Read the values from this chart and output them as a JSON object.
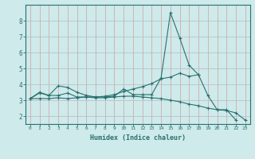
{
  "xlabel": "Humidex (Indice chaleur)",
  "background_color": "#ceeaea",
  "grid_color": "#b8b8c8",
  "grid_color_red": "#d0a0a0",
  "line_color": "#2a7070",
  "xlim": [
    -0.5,
    23.5
  ],
  "ylim": [
    1.5,
    9.0
  ],
  "yticks": [
    2,
    3,
    4,
    5,
    6,
    7,
    8
  ],
  "xticks": [
    0,
    1,
    2,
    3,
    4,
    5,
    6,
    7,
    8,
    9,
    10,
    11,
    12,
    13,
    14,
    15,
    16,
    17,
    18,
    19,
    20,
    21,
    22,
    23
  ],
  "line1_x": [
    0,
    1,
    2,
    3,
    4,
    5,
    6,
    7,
    8,
    9,
    10,
    11,
    12,
    13,
    14,
    15,
    16,
    17,
    18,
    19,
    20,
    21,
    22
  ],
  "line1_y": [
    3.1,
    3.5,
    3.3,
    3.9,
    3.8,
    3.5,
    3.3,
    3.2,
    3.2,
    3.25,
    3.7,
    3.35,
    3.35,
    3.35,
    4.4,
    8.5,
    6.9,
    5.2,
    4.6,
    3.3,
    2.4,
    2.4,
    1.75
  ],
  "line2_x": [
    0,
    1,
    2,
    3,
    4,
    5,
    6,
    7,
    8,
    9,
    10,
    11,
    12,
    13,
    14,
    15,
    16,
    17,
    18
  ],
  "line2_y": [
    3.1,
    3.1,
    3.1,
    3.15,
    3.1,
    3.15,
    3.2,
    3.2,
    3.25,
    3.35,
    3.55,
    3.7,
    3.85,
    4.05,
    4.35,
    4.45,
    4.7,
    4.5,
    4.6
  ],
  "line3_x": [
    0,
    1,
    2,
    3,
    4,
    5,
    6,
    7,
    8,
    9,
    10,
    11,
    12,
    13,
    14,
    15,
    16,
    17,
    18,
    19,
    20,
    21,
    22,
    23
  ],
  "line3_y": [
    3.1,
    3.45,
    3.3,
    3.3,
    3.45,
    3.2,
    3.2,
    3.15,
    3.15,
    3.2,
    3.25,
    3.25,
    3.2,
    3.15,
    3.1,
    3.0,
    2.9,
    2.75,
    2.65,
    2.5,
    2.4,
    2.35,
    2.2,
    1.75
  ]
}
